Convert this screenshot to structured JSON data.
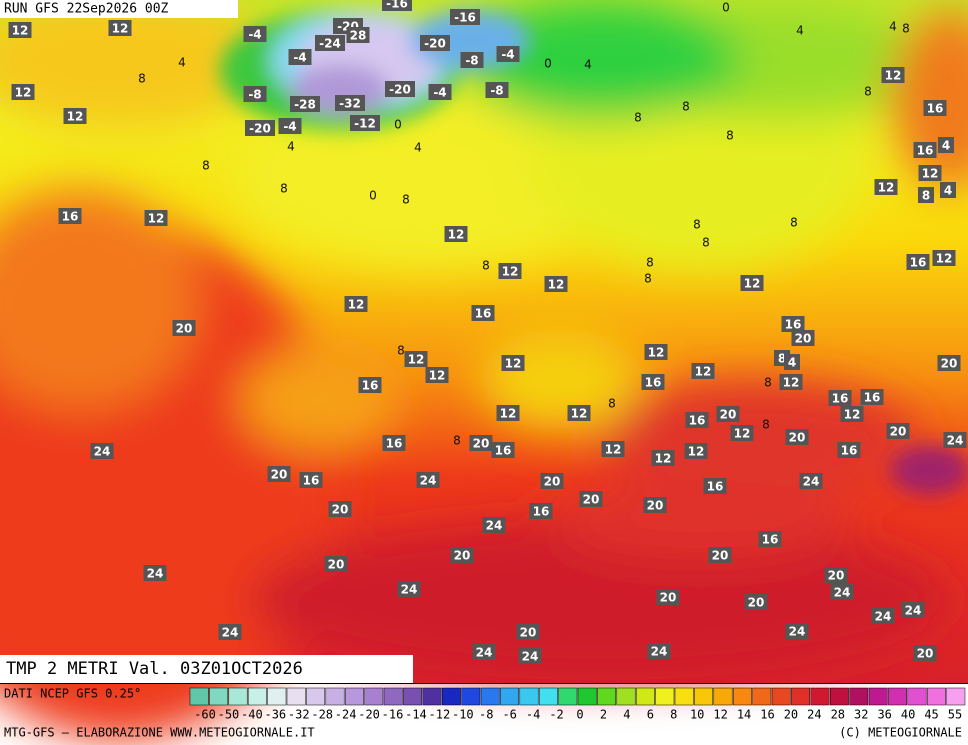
{
  "header": {
    "run": "RUN GFS 22Sep2026 00Z"
  },
  "map": {
    "labels": [
      12,
      12,
      4,
      -4,
      -4,
      -24,
      -20,
      28,
      -16,
      -16,
      -20,
      -8,
      -4,
      0,
      4,
      0,
      4,
      4,
      8,
      8,
      12,
      -8,
      -28,
      -32,
      -20,
      -4,
      -8,
      12,
      -20,
      -4,
      -12,
      0,
      4,
      4,
      8,
      8,
      8,
      8,
      12,
      16,
      16,
      4,
      12,
      8,
      8,
      0,
      8,
      12,
      8,
      4,
      16,
      12,
      12,
      8,
      8,
      8,
      8,
      12,
      8,
      8,
      12,
      12,
      16,
      12,
      12,
      16,
      20,
      16,
      20,
      8,
      12,
      12,
      12,
      12,
      8,
      4,
      20,
      16,
      12,
      16,
      12,
      8,
      8,
      12,
      12,
      16,
      20,
      16,
      16,
      12,
      12,
      8,
      16,
      8,
      20,
      16,
      12,
      12,
      12,
      20,
      16,
      20,
      24,
      24,
      20,
      16,
      24,
      20,
      20,
      16,
      24,
      20,
      16,
      20,
      24,
      16,
      20,
      20,
      20,
      24,
      20,
      24,
      24,
      20,
      20,
      24,
      24,
      24,
      20,
      24,
      24,
      24,
      24,
      20
    ]
  },
  "footer": {
    "title": "TMP 2 METRI Val. 03Z01OCT2026",
    "source": "DATI NCEP GFS 0.25°",
    "credit": "MTG-GFS – ELABORAZIONE WWW.METEOGIORNALE.IT",
    "copyright": "(C) METEOGIORNALE"
  },
  "scale": {
    "ticks": [
      -60,
      -50,
      -40,
      -36,
      -32,
      -28,
      -24,
      -20,
      -16,
      -14,
      -12,
      -10,
      -8,
      -6,
      -4,
      -2,
      0,
      2,
      4,
      6,
      8,
      10,
      12,
      14,
      16,
      20,
      24,
      28,
      32,
      36,
      40,
      45,
      55
    ]
  }
}
